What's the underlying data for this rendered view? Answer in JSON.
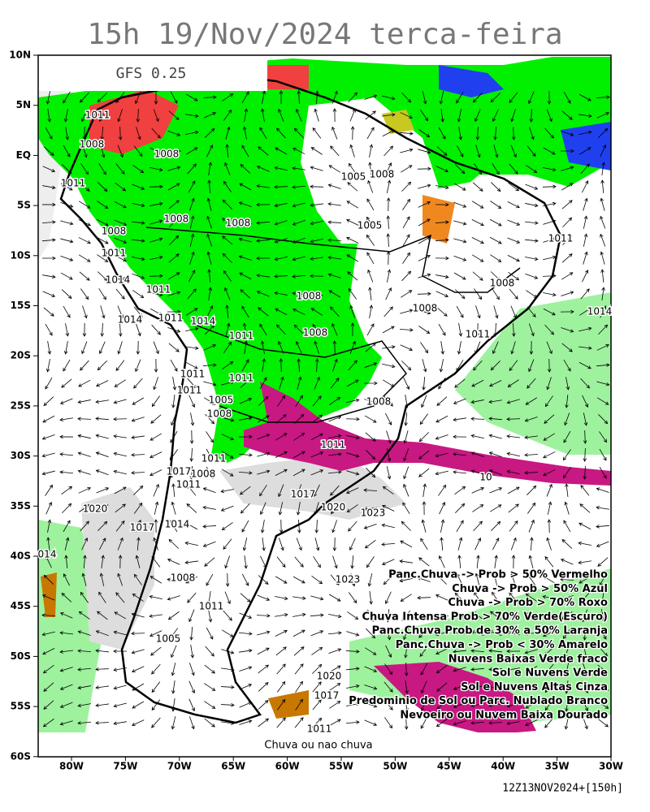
{
  "header": {
    "title": "15h 19/Nov/2024 terca-feira",
    "model": "GFS 0.25",
    "footer": "12Z13NOV2024+[150h]"
  },
  "map": {
    "lat_labels": [
      "10N",
      "5N",
      "EQ",
      "5S",
      "10S",
      "15S",
      "20S",
      "25S",
      "30S",
      "35S",
      "40S",
      "45S",
      "50S",
      "55S",
      "60S"
    ],
    "lon_labels": [
      "80W",
      "75W",
      "70W",
      "65W",
      "60W",
      "55W",
      "50W",
      "45W",
      "40W",
      "35W",
      "30W"
    ],
    "isobar_labels": [
      "1011",
      "1008",
      "1008",
      "1011",
      "1008",
      "1008",
      "1008",
      "1011",
      "1014",
      "1011",
      "1014",
      "1011",
      "1014",
      "1011",
      "1005",
      "1008",
      "1005",
      "1011",
      "1008",
      "1014",
      "1008",
      "1008",
      "1008",
      "1011",
      "1011",
      "1011",
      "1011",
      "1005",
      "1008",
      "1008",
      "1011",
      "1011",
      "1017",
      "1008",
      "1011",
      "1017",
      "1020",
      "1020",
      "1023",
      "1017",
      "1014",
      "1023",
      "1008",
      "1011",
      "1005",
      "1020",
      "1017",
      "1011",
      "014",
      "10"
    ],
    "bottom_label": "Chuva ou nao chuva"
  },
  "legend": [
    "Panc.Chuva -> Prob > 50% Vermelho",
    "Chuva -> Prob > 50% Azul",
    "Chuva -> Prob > 70% Roxo",
    "Chuva Intensa Prob > 70% Verde(Escuro)",
    "Panc.Chuva Prob de 30% a 50% Laranja",
    "Panc.Chuva -> Prob < 30% Amarelo",
    "Nuvens Baixas Verde fraco",
    "Sol e Nuvens Verde",
    "Sol e Nuvens Altas Cinza",
    "Predominio de Sol ou Parc. Nublado Branco",
    "Nevoeiro ou Nuvem Baixa Dourado"
  ]
}
